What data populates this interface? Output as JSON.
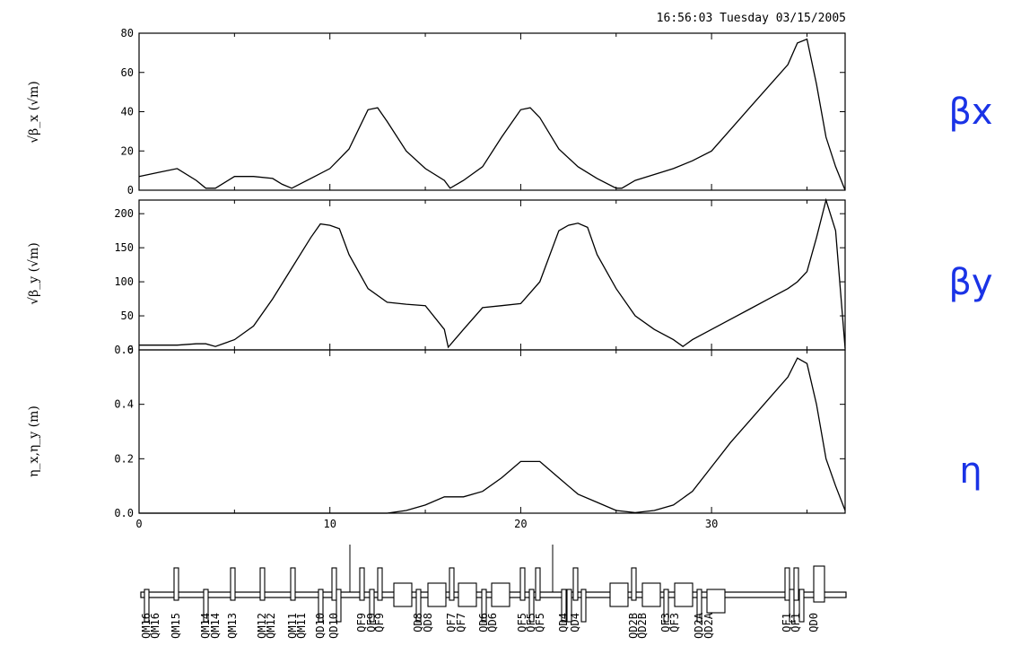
{
  "timestamp": "16:56:03 Tuesday 03/15/2005",
  "side_labels": [
    "βx",
    "βy",
    "η"
  ],
  "chart_data": [
    {
      "type": "line",
      "ylabel": "√β_x (√m)",
      "xlim": [
        0,
        37
      ],
      "ylim": [
        0,
        80
      ],
      "yticks": [
        0,
        20,
        40,
        60,
        80
      ],
      "series": [
        {
          "x": [
            0,
            1,
            2,
            3,
            3.5,
            4,
            5,
            6,
            7,
            7.5,
            8,
            9,
            10,
            11,
            12,
            12.5,
            13,
            14,
            15,
            16,
            16.3,
            17,
            18,
            19,
            20,
            20.5,
            21,
            22,
            23,
            24,
            25,
            25.3,
            26,
            27,
            28,
            29,
            30,
            31,
            32,
            33,
            34,
            34.5,
            35,
            35.5,
            36,
            36.5,
            37
          ],
          "y": [
            7,
            9,
            11,
            5,
            1,
            1,
            7,
            7,
            6,
            3,
            1,
            6,
            11,
            21,
            41,
            42,
            35,
            20,
            11,
            5,
            1,
            5,
            12,
            27,
            41,
            42,
            37,
            21,
            12,
            6,
            1,
            1,
            5,
            8,
            11,
            15,
            20,
            31,
            42,
            53,
            64,
            75,
            77,
            54,
            27,
            12,
            0
          ]
        }
      ]
    },
    {
      "type": "line",
      "ylabel": "√β_y (√m)",
      "xlim": [
        0,
        37
      ],
      "ylim": [
        0,
        220
      ],
      "yticks": [
        0,
        50,
        100,
        150,
        200
      ],
      "series": [
        {
          "x": [
            0,
            1,
            2,
            3,
            3.5,
            4,
            5,
            6,
            7,
            8,
            9,
            9.5,
            10,
            10.5,
            11,
            12,
            13,
            14,
            15,
            16,
            16.2,
            17,
            18,
            19,
            20,
            21,
            22,
            22.5,
            23,
            23.5,
            24,
            25,
            26,
            27,
            28,
            28.5,
            29,
            30,
            31,
            32,
            33,
            34,
            34.5,
            35,
            35.5,
            36,
            36.5,
            37
          ],
          "y": [
            7,
            7,
            7,
            9,
            9,
            5,
            15,
            35,
            75,
            120,
            165,
            185,
            183,
            178,
            140,
            90,
            70,
            67,
            65,
            30,
            4,
            30,
            62,
            65,
            68,
            100,
            175,
            183,
            186,
            180,
            140,
            90,
            50,
            30,
            15,
            5,
            15,
            30,
            45,
            60,
            75,
            90,
            100,
            115,
            165,
            220,
            175,
            2
          ]
        }
      ]
    },
    {
      "type": "line",
      "ylabel": "η_x,η_y (m)",
      "xlim": [
        0,
        37
      ],
      "ylim": [
        0,
        0.6
      ],
      "yticks": [
        0.0,
        0.2,
        0.4,
        0.6
      ],
      "xticks": [
        0,
        10,
        20,
        30
      ],
      "series": [
        {
          "x": [
            0,
            10,
            13,
            14,
            15,
            16,
            17,
            18,
            19,
            20,
            21,
            22,
            23,
            24,
            25,
            26,
            27,
            28,
            29,
            30,
            31,
            32,
            33,
            34,
            34.5,
            35,
            35.5,
            36,
            36.5,
            37
          ],
          "y": [
            0,
            0,
            0,
            0.01,
            0.03,
            0.06,
            0.06,
            0.08,
            0.13,
            0.19,
            0.19,
            0.13,
            0.07,
            0.04,
            0.01,
            0.002,
            0.01,
            0.03,
            0.08,
            0.17,
            0.26,
            0.34,
            0.42,
            0.5,
            0.57,
            0.55,
            0.4,
            0.2,
            0.1,
            0.01
          ]
        }
      ]
    }
  ],
  "magnet_labels": [
    "QM16",
    "QM16",
    "QM15",
    "QM14",
    "QM14",
    "QM13",
    "QM12",
    "QM12",
    "QM11",
    "QM11",
    "QD10",
    "QD10",
    "QF9",
    "QF9",
    "QF9",
    "QD8",
    "QD8",
    "QF7",
    "QF7",
    "QD6",
    "QD6",
    "QF5",
    "QF5",
    "QF5",
    "QD4",
    "QD4",
    "QD2B",
    "QD2B",
    "QF3",
    "QF3",
    "QD2A",
    "QD2A",
    "QF1",
    "QF1",
    "QD0"
  ]
}
